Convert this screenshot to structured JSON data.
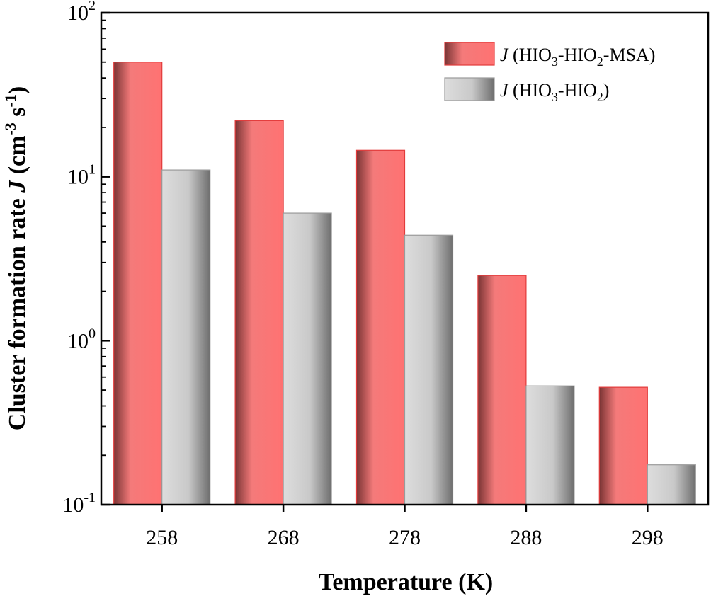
{
  "chart_data": {
    "type": "bar",
    "title": "",
    "xlabel": "Temperature (K)",
    "ylabel": {
      "prefix": "Cluster formation rate ",
      "symbol": "J",
      "units_open": " (cm",
      "exp1": "-3",
      "mid": " s",
      "exp2": "-1",
      "units_close": ")"
    },
    "categories": [
      "258",
      "268",
      "278",
      "288",
      "298"
    ],
    "y_scale": "log",
    "ylim": [
      0.1,
      100
    ],
    "y_ticks": [
      {
        "value": 0.1,
        "base": "10",
        "exp": "-1"
      },
      {
        "value": 1,
        "base": "10",
        "exp": "0"
      },
      {
        "value": 10,
        "base": "10",
        "exp": "1"
      },
      {
        "value": 100,
        "base": "10",
        "exp": "2"
      }
    ],
    "grid": false,
    "legend_position": "top-right",
    "series": [
      {
        "name": {
          "symbol": "J",
          "open": " (HIO",
          "sub1": "3",
          "mid": "-HIO",
          "sub2": "2",
          "close": "-MSA)"
        },
        "values": [
          50,
          22,
          14.5,
          2.5,
          0.52
        ],
        "color": "#f87171"
      },
      {
        "name": {
          "symbol": "J",
          "open": " (HIO",
          "sub1": "3",
          "mid": "-HIO",
          "sub2": "2",
          "close": ")"
        },
        "values": [
          11,
          6,
          4.4,
          0.53,
          0.175
        ],
        "color": "#c4c4c4"
      }
    ]
  }
}
